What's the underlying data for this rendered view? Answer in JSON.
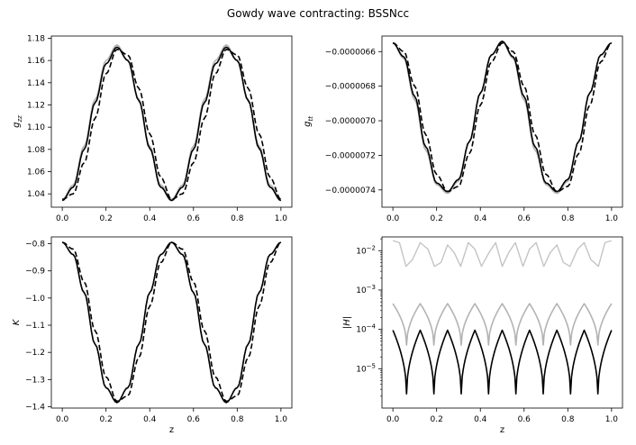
{
  "figure": {
    "title": "Gowdy wave contracting: BSSNcc"
  },
  "chart_data": [
    {
      "id": "gzz",
      "type": "line",
      "ylabel_main": "g",
      "ylabel_sub": "zz",
      "xlabel": "",
      "xlim": [
        -0.05,
        1.05
      ],
      "ylim": [
        1.028,
        1.182
      ],
      "xticks": [
        "0.0",
        "0.2",
        "0.4",
        "0.6",
        "0.8",
        "1.0"
      ],
      "yticks": [
        "1.04",
        "1.06",
        "1.08",
        "1.10",
        "1.12",
        "1.14",
        "1.16",
        "1.18"
      ],
      "series": [
        {
          "style": "gray-solid",
          "x": [
            0.0,
            0.05,
            0.1,
            0.15,
            0.2,
            0.25,
            0.3,
            0.35,
            0.4,
            0.45,
            0.5,
            0.55,
            0.6,
            0.65,
            0.7,
            0.75,
            0.8,
            0.85,
            0.9,
            0.95,
            1.0
          ],
          "values": [
            1.035,
            1.048,
            1.083,
            1.125,
            1.16,
            1.174,
            1.16,
            1.125,
            1.083,
            1.048,
            1.035,
            1.048,
            1.083,
            1.125,
            1.16,
            1.174,
            1.16,
            1.125,
            1.083,
            1.048,
            1.035
          ]
        },
        {
          "style": "black-solid",
          "x": [
            0.0,
            0.05,
            0.1,
            0.15,
            0.2,
            0.25,
            0.3,
            0.35,
            0.4,
            0.45,
            0.5,
            0.55,
            0.6,
            0.65,
            0.7,
            0.75,
            0.8,
            0.85,
            0.9,
            0.95,
            1.0
          ],
          "values": [
            1.034,
            1.046,
            1.08,
            1.122,
            1.157,
            1.172,
            1.16,
            1.124,
            1.081,
            1.046,
            1.034,
            1.046,
            1.08,
            1.122,
            1.157,
            1.172,
            1.16,
            1.124,
            1.081,
            1.046,
            1.034
          ]
        },
        {
          "style": "black-dashed",
          "x": [
            0.0,
            0.05,
            0.1,
            0.15,
            0.2,
            0.25,
            0.3,
            0.35,
            0.4,
            0.45,
            0.5,
            0.55,
            0.6,
            0.65,
            0.7,
            0.75,
            0.8,
            0.85,
            0.9,
            0.95,
            1.0
          ],
          "values": [
            1.035,
            1.04,
            1.068,
            1.108,
            1.148,
            1.17,
            1.165,
            1.135,
            1.094,
            1.055,
            1.035,
            1.04,
            1.068,
            1.108,
            1.148,
            1.17,
            1.165,
            1.135,
            1.094,
            1.055,
            1.035
          ]
        }
      ]
    },
    {
      "id": "gtt",
      "type": "line",
      "ylabel_main": "g",
      "ylabel_sub": "tt",
      "xlabel": "",
      "xlim": [
        -0.05,
        1.05
      ],
      "ylim": [
        -7.5e-06,
        -6.51e-06
      ],
      "xticks": [
        "0.0",
        "0.2",
        "0.4",
        "0.6",
        "0.8",
        "1.0"
      ],
      "yticks": [
        "-0.0000066",
        "-0.0000068",
        "-0.0000070",
        "-0.0000072",
        "-0.0000074"
      ],
      "series": [
        {
          "style": "gray-solid",
          "x": [
            0.0,
            0.05,
            0.1,
            0.15,
            0.2,
            0.25,
            0.3,
            0.35,
            0.4,
            0.45,
            0.5,
            0.55,
            0.6,
            0.65,
            0.7,
            0.75,
            0.8,
            0.85,
            0.9,
            0.95,
            1.0
          ],
          "values": [
            -6.55e-06,
            -6.64e-06,
            -6.88e-06,
            -7.17e-06,
            -7.37e-06,
            -7.42e-06,
            -7.35e-06,
            -7.12e-06,
            -6.84e-06,
            -6.62e-06,
            -6.54e-06,
            -6.64e-06,
            -6.88e-06,
            -7.17e-06,
            -7.37e-06,
            -7.42e-06,
            -7.35e-06,
            -7.12e-06,
            -6.84e-06,
            -6.62e-06,
            -6.55e-06
          ]
        },
        {
          "style": "black-solid",
          "x": [
            0.0,
            0.05,
            0.1,
            0.15,
            0.2,
            0.25,
            0.3,
            0.35,
            0.4,
            0.45,
            0.5,
            0.55,
            0.6,
            0.65,
            0.7,
            0.75,
            0.8,
            0.85,
            0.9,
            0.95,
            1.0
          ],
          "values": [
            -6.55e-06,
            -6.63e-06,
            -6.86e-06,
            -7.15e-06,
            -7.36e-06,
            -7.41e-06,
            -7.34e-06,
            -7.12e-06,
            -6.84e-06,
            -6.62e-06,
            -6.54e-06,
            -6.63e-06,
            -6.86e-06,
            -7.15e-06,
            -7.36e-06,
            -7.41e-06,
            -7.34e-06,
            -7.12e-06,
            -6.84e-06,
            -6.62e-06,
            -6.55e-06
          ]
        },
        {
          "style": "black-dashed",
          "x": [
            0.0,
            0.05,
            0.1,
            0.15,
            0.2,
            0.25,
            0.3,
            0.35,
            0.4,
            0.45,
            0.5,
            0.55,
            0.6,
            0.65,
            0.7,
            0.75,
            0.8,
            0.85,
            0.9,
            0.95,
            1.0
          ],
          "values": [
            -6.55e-06,
            -6.6e-06,
            -6.8e-06,
            -7.08e-06,
            -7.31e-06,
            -7.41e-06,
            -7.38e-06,
            -7.19e-06,
            -6.91e-06,
            -6.66e-06,
            -6.55e-06,
            -6.6e-06,
            -6.8e-06,
            -7.08e-06,
            -7.31e-06,
            -7.41e-06,
            -7.38e-06,
            -7.19e-06,
            -6.91e-06,
            -6.66e-06,
            -6.55e-06
          ]
        }
      ]
    },
    {
      "id": "K",
      "type": "line",
      "ylabel_main": "K",
      "ylabel_sub": "",
      "xlabel": "z",
      "xlim": [
        -0.05,
        1.05
      ],
      "ylim": [
        -1.405,
        -0.775
      ],
      "xticks": [
        "0.0",
        "0.2",
        "0.4",
        "0.6",
        "0.8",
        "1.0"
      ],
      "yticks": [
        "-0.8",
        "-0.9",
        "-1.0",
        "-1.1",
        "-1.2",
        "-1.3",
        "-1.4"
      ],
      "series": [
        {
          "style": "gray-solid",
          "x": [
            0.0,
            0.05,
            0.1,
            0.15,
            0.2,
            0.25,
            0.3,
            0.35,
            0.4,
            0.45,
            0.5,
            0.55,
            0.6,
            0.65,
            0.7,
            0.75,
            0.8,
            0.85,
            0.9,
            0.95,
            1.0
          ],
          "values": [
            -0.795,
            -0.84,
            -0.98,
            -1.17,
            -1.33,
            -1.385,
            -1.33,
            -1.17,
            -0.98,
            -0.84,
            -0.795,
            -0.84,
            -0.98,
            -1.17,
            -1.33,
            -1.385,
            -1.33,
            -1.17,
            -0.98,
            -0.84,
            -0.795
          ]
        },
        {
          "style": "black-solid",
          "x": [
            0.0,
            0.05,
            0.1,
            0.15,
            0.2,
            0.25,
            0.3,
            0.35,
            0.4,
            0.45,
            0.5,
            0.55,
            0.6,
            0.65,
            0.7,
            0.75,
            0.8,
            0.85,
            0.9,
            0.95,
            1.0
          ],
          "values": [
            -0.795,
            -0.84,
            -0.98,
            -1.17,
            -1.33,
            -1.385,
            -1.33,
            -1.17,
            -0.98,
            -0.84,
            -0.795,
            -0.84,
            -0.98,
            -1.17,
            -1.33,
            -1.385,
            -1.33,
            -1.17,
            -0.98,
            -0.84,
            -0.795
          ]
        },
        {
          "style": "black-dashed",
          "x": [
            0.0,
            0.05,
            0.1,
            0.15,
            0.2,
            0.25,
            0.3,
            0.35,
            0.4,
            0.45,
            0.5,
            0.55,
            0.6,
            0.65,
            0.7,
            0.75,
            0.8,
            0.85,
            0.9,
            0.95,
            1.0
          ],
          "values": [
            -0.795,
            -0.82,
            -0.94,
            -1.12,
            -1.29,
            -1.38,
            -1.36,
            -1.22,
            -1.03,
            -0.87,
            -0.795,
            -0.82,
            -0.94,
            -1.12,
            -1.29,
            -1.38,
            -1.36,
            -1.22,
            -1.03,
            -0.87,
            -0.795
          ]
        }
      ]
    },
    {
      "id": "H",
      "type": "line",
      "yscale": "log",
      "ylabel_main": "|H|",
      "ylabel_sub": "",
      "xlabel": "z",
      "xlim": [
        -0.05,
        1.05
      ],
      "ylim_log10": [
        -6.0,
        -1.65
      ],
      "xticks": [
        "0.0",
        "0.2",
        "0.4",
        "0.6",
        "0.8",
        "1.0"
      ],
      "yticks_log10": [
        -5,
        -4,
        -3,
        -2
      ],
      "series": [
        {
          "style": "lightgray-solid",
          "x": [
            0.0,
            0.03,
            0.06,
            0.09,
            0.125,
            0.16,
            0.19,
            0.22,
            0.25,
            0.28,
            0.31,
            0.345,
            0.375,
            0.405,
            0.44,
            0.47,
            0.5,
            0.53,
            0.56,
            0.595,
            0.625,
            0.655,
            0.69,
            0.72,
            0.75,
            0.78,
            0.81,
            0.845,
            0.875,
            0.905,
            0.94,
            0.97,
            1.0
          ],
          "values": [
            0.018,
            0.016,
            0.004,
            0.006,
            0.016,
            0.011,
            0.004,
            0.005,
            0.014,
            0.009,
            0.004,
            0.016,
            0.011,
            0.004,
            0.009,
            0.016,
            0.004,
            0.009,
            0.016,
            0.004,
            0.011,
            0.016,
            0.004,
            0.009,
            0.014,
            0.005,
            0.004,
            0.011,
            0.016,
            0.006,
            0.004,
            0.016,
            0.018
          ]
        },
        {
          "style": "gray-solid",
          "x": [
            0.0,
            0.0625,
            0.125,
            0.1875,
            0.25,
            0.3125,
            0.375,
            0.4375,
            0.5,
            0.5625,
            0.625,
            0.6875,
            0.75,
            0.8125,
            0.875,
            0.9375,
            1.0
          ],
          "values": [
            0.00045,
            4e-05,
            0.00045,
            4e-05,
            0.00045,
            4e-05,
            0.00045,
            4e-05,
            0.00045,
            4e-05,
            0.00045,
            4e-05,
            0.00045,
            4e-05,
            0.00045,
            4e-05,
            0.00045
          ],
          "cusp": true
        },
        {
          "style": "black-solid",
          "x": [
            0.0,
            0.0625,
            0.125,
            0.1875,
            0.25,
            0.3125,
            0.375,
            0.4375,
            0.5,
            0.5625,
            0.625,
            0.6875,
            0.75,
            0.8125,
            0.875,
            0.9375,
            1.0
          ],
          "values": [
            9.5e-05,
            2.3e-06,
            9.5e-05,
            2.3e-06,
            9.5e-05,
            2.3e-06,
            9.5e-05,
            2.3e-06,
            9.5e-05,
            2.3e-06,
            9.5e-05,
            2.3e-06,
            9.5e-05,
            2.3e-06,
            9.5e-05,
            2.3e-06,
            9.5e-05
          ],
          "cusp": true
        }
      ]
    }
  ]
}
